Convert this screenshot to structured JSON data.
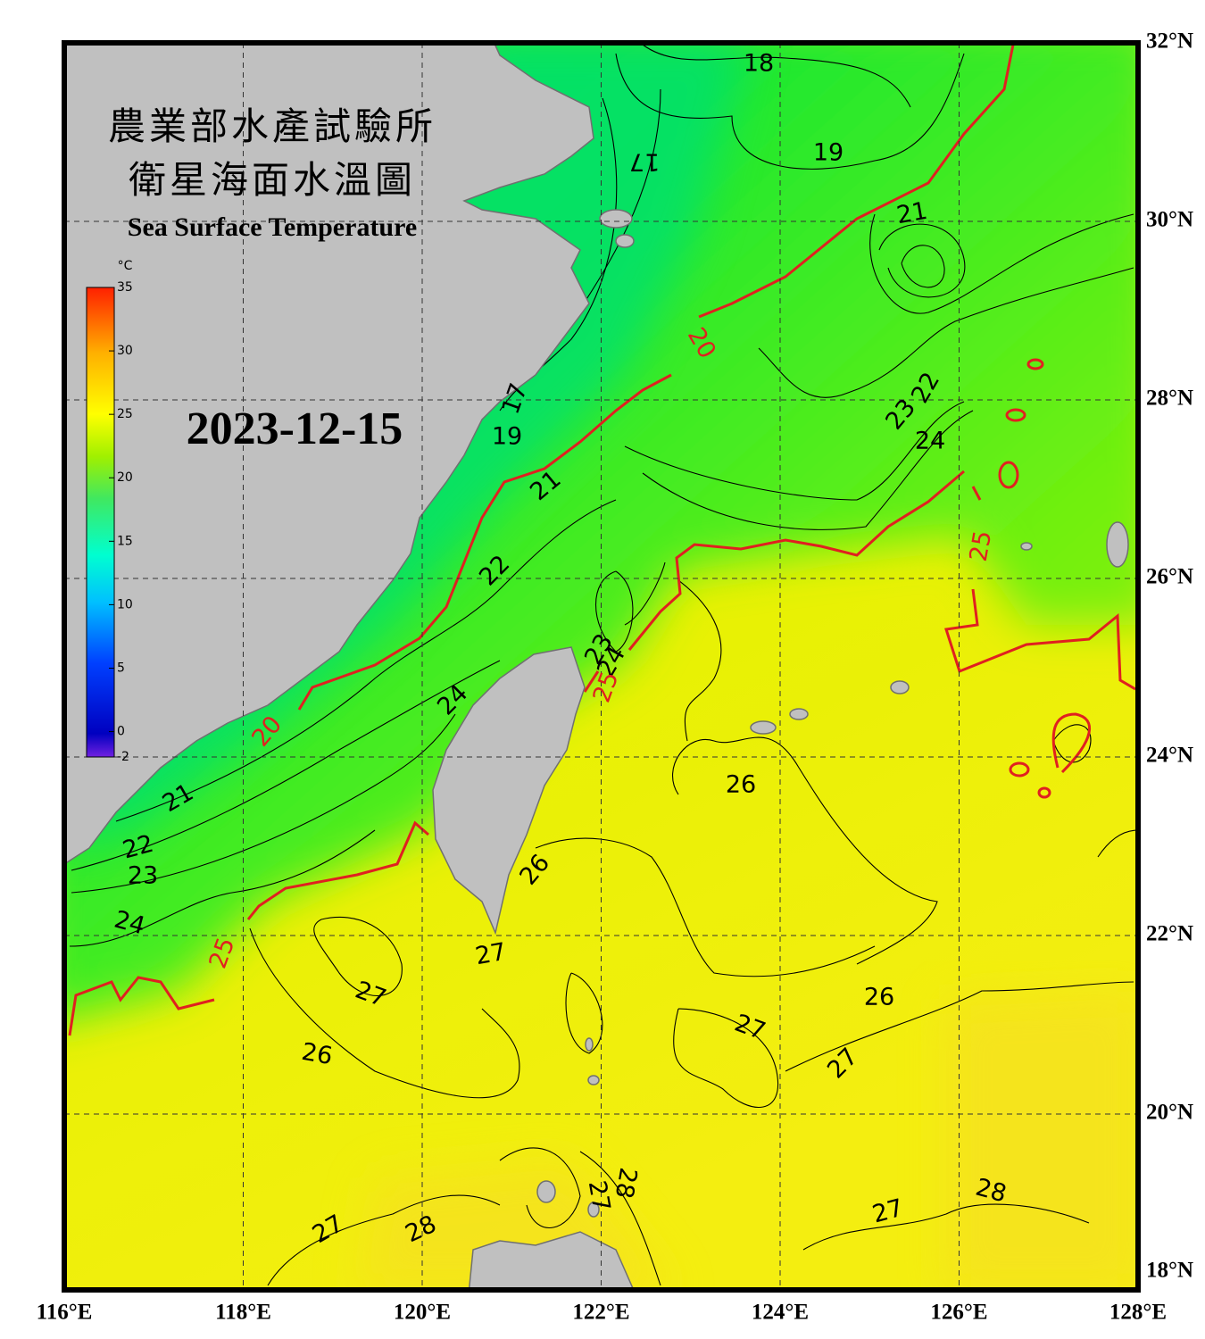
{
  "map": {
    "title_zh": "農業部水產試驗所",
    "subtitle_zh": "衛星海面水溫圖",
    "title_en": "Sea Surface Temperature",
    "date": "2023-12-15",
    "lonlim": [
      116,
      128
    ],
    "latlim": [
      18,
      32
    ],
    "lonticks": [
      {
        "value": 116,
        "label": "116°E"
      },
      {
        "value": 118,
        "label": "118°E"
      },
      {
        "value": 120,
        "label": "120°E"
      },
      {
        "value": 122,
        "label": "122°E"
      },
      {
        "value": 124,
        "label": "124°E"
      },
      {
        "value": 126,
        "label": "126°E"
      },
      {
        "value": 128,
        "label": "128°E"
      }
    ],
    "latticks": [
      {
        "value": 32,
        "label": "32°N"
      },
      {
        "value": 30,
        "label": "30°N"
      },
      {
        "value": 28,
        "label": "28°N"
      },
      {
        "value": 26,
        "label": "26°N"
      },
      {
        "value": 24,
        "label": "24°N"
      },
      {
        "value": 22,
        "label": "22°N"
      },
      {
        "value": 20,
        "label": "20°N"
      },
      {
        "value": 18,
        "label": "18°N"
      }
    ],
    "colorbar": {
      "unit": "°C",
      "lim": [
        -2,
        35
      ],
      "ticks": [
        35,
        30,
        25,
        20,
        15,
        10,
        5,
        0,
        -2
      ]
    },
    "isotherm_labels": [
      18,
      19,
      17,
      21,
      22,
      23,
      24,
      19,
      17,
      21,
      22,
      23,
      24,
      24,
      26,
      21,
      22,
      23,
      24,
      26,
      27,
      27,
      26,
      27,
      26,
      27,
      28,
      27,
      28,
      27,
      27,
      28
    ],
    "highlight_labels": [
      20,
      25,
      25,
      20,
      25
    ],
    "highlight_color": "#e02020"
  }
}
